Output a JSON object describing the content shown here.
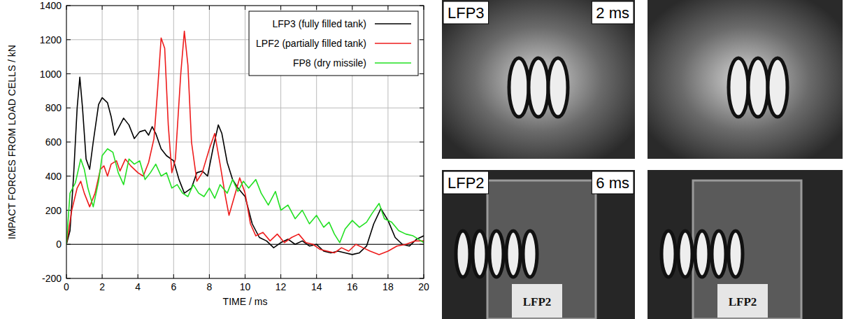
{
  "chart_data": {
    "type": "line",
    "x_label": "TIME / ms",
    "y_label": "IMPACT FORCES FROM LOAD CELLS / kN",
    "xlim": [
      0,
      20
    ],
    "xticks": [
      0,
      2,
      4,
      6,
      8,
      10,
      12,
      14,
      16,
      18,
      20
    ],
    "ylim": [
      -200,
      1400
    ],
    "yticks": [
      -200,
      0,
      200,
      400,
      600,
      800,
      1000,
      1200,
      1400
    ],
    "grid": true,
    "legend": "upper right",
    "series": [
      {
        "name": "LFP3 (fully filled tank)",
        "color": "#000000",
        "x": [
          0,
          0.2,
          0.4,
          0.6,
          0.75,
          0.9,
          1.1,
          1.3,
          1.5,
          1.8,
          2.0,
          2.3,
          2.5,
          2.7,
          3.0,
          3.2,
          3.5,
          3.8,
          4.1,
          4.4,
          4.6,
          4.8,
          5.0,
          5.3,
          5.6,
          6.0,
          6.3,
          6.6,
          7.0,
          7.3,
          7.6,
          7.9,
          8.2,
          8.5,
          8.7,
          9.0,
          9.3,
          9.6,
          10.0,
          10.4,
          10.8,
          11.2,
          11.6,
          12.0,
          12.4,
          12.8,
          13.2,
          13.6,
          14.0,
          14.4,
          14.8,
          15.2,
          15.6,
          16.0,
          16.4,
          16.8,
          17.2,
          17.6,
          18.0,
          18.4,
          18.8,
          19.2,
          19.6,
          20
        ],
        "values": [
          0,
          80,
          400,
          800,
          980,
          800,
          500,
          440,
          600,
          820,
          860,
          830,
          750,
          640,
          700,
          740,
          700,
          620,
          660,
          670,
          640,
          690,
          650,
          560,
          520,
          490,
          380,
          300,
          330,
          420,
          430,
          400,
          560,
          700,
          650,
          480,
          380,
          330,
          280,
          120,
          40,
          20,
          -20,
          10,
          30,
          0,
          20,
          -10,
          0,
          -40,
          -50,
          -40,
          -50,
          -60,
          -50,
          -10,
          120,
          210,
          140,
          40,
          0,
          -10,
          30,
          50
        ]
      },
      {
        "name": "LPF2 (partially filled tank)",
        "color": "#ee1c1c",
        "x": [
          0,
          0.3,
          0.6,
          0.8,
          1.0,
          1.3,
          1.6,
          1.9,
          2.1,
          2.3,
          2.5,
          2.8,
          3.0,
          3.3,
          3.6,
          4.0,
          4.3,
          4.6,
          4.9,
          5.1,
          5.3,
          5.5,
          5.7,
          5.9,
          6.1,
          6.4,
          6.6,
          6.8,
          7.0,
          7.3,
          7.6,
          8.0,
          8.3,
          8.6,
          8.9,
          9.1,
          9.4,
          9.7,
          10.0,
          10.3,
          10.6,
          11.0,
          11.4,
          11.8,
          12.2,
          12.6,
          13.0,
          13.4,
          13.8,
          14.2,
          14.6,
          15.0,
          15.4,
          15.8,
          16.2,
          16.6,
          17.0,
          17.5,
          18.0,
          18.5,
          19.0,
          19.5,
          20
        ],
        "values": [
          0,
          200,
          330,
          370,
          300,
          220,
          300,
          440,
          460,
          400,
          470,
          490,
          430,
          500,
          460,
          420,
          400,
          480,
          620,
          900,
          1210,
          1150,
          700,
          420,
          500,
          1000,
          1250,
          1050,
          600,
          370,
          420,
          560,
          650,
          470,
          280,
          170,
          280,
          390,
          300,
          120,
          50,
          70,
          20,
          60,
          10,
          40,
          60,
          10,
          0,
          -30,
          -40,
          -50,
          -20,
          -40,
          0,
          -20,
          -40,
          -60,
          -40,
          -10,
          0,
          20,
          20
        ]
      },
      {
        "name": "FP8 (dry missile)",
        "color": "#22e022",
        "x": [
          0,
          0.2,
          0.5,
          0.8,
          1.0,
          1.2,
          1.5,
          1.8,
          2.0,
          2.3,
          2.6,
          2.9,
          3.2,
          3.5,
          3.8,
          4.1,
          4.4,
          4.7,
          5.0,
          5.3,
          5.6,
          5.9,
          6.2,
          6.5,
          6.8,
          7.1,
          7.4,
          7.7,
          8.0,
          8.3,
          8.6,
          9.0,
          9.3,
          9.6,
          9.9,
          10.2,
          10.6,
          10.9,
          11.3,
          11.7,
          12.0,
          12.4,
          12.8,
          13.2,
          13.6,
          14.0,
          14.4,
          14.7,
          15.0,
          15.3,
          15.6,
          16.0,
          16.4,
          16.8,
          17.1,
          17.5,
          17.8,
          18.2,
          18.6,
          19.0,
          19.4,
          19.7,
          20
        ],
        "values": [
          0,
          300,
          360,
          500,
          440,
          330,
          220,
          370,
          520,
          560,
          540,
          420,
          350,
          500,
          470,
          490,
          380,
          420,
          470,
          400,
          420,
          330,
          350,
          300,
          280,
          350,
          300,
          280,
          330,
          270,
          350,
          300,
          380,
          310,
          370,
          330,
          380,
          300,
          230,
          310,
          200,
          230,
          150,
          200,
          120,
          170,
          100,
          130,
          60,
          10,
          90,
          140,
          100,
          130,
          180,
          240,
          150,
          130,
          80,
          60,
          50,
          30,
          10
        ]
      }
    ]
  },
  "photo_panels": [
    {
      "label": "LFP3",
      "time": "2 ms"
    },
    {
      "label": "LFP2",
      "time": "6 ms",
      "signs": [
        "LFP2",
        "LFP2"
      ]
    }
  ]
}
